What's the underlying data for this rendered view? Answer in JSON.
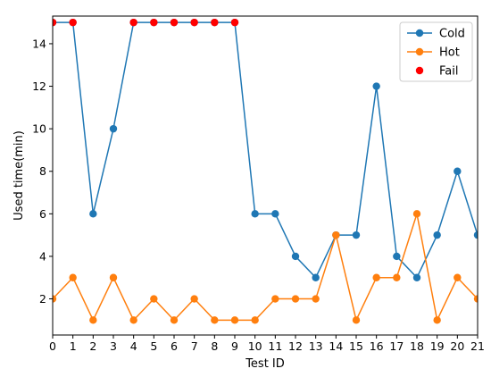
{
  "chart_data": {
    "type": "line",
    "title": "",
    "xlabel": "Test ID",
    "ylabel": "Used time(min)",
    "x": [
      0,
      1,
      2,
      3,
      4,
      5,
      6,
      7,
      8,
      9,
      10,
      11,
      12,
      13,
      14,
      15,
      16,
      17,
      18,
      19,
      20,
      21
    ],
    "xlim": [
      0,
      21
    ],
    "ylim": [
      0.3,
      15.3
    ],
    "x_ticks": [
      "0",
      "1",
      "2",
      "3",
      "4",
      "5",
      "6",
      "7",
      "8",
      "9",
      "10",
      "11",
      "12",
      "13",
      "14",
      "15",
      "16",
      "17",
      "18",
      "19",
      "20",
      "21"
    ],
    "y_ticks": [
      {
        "value": 2,
        "label": "2"
      },
      {
        "value": 4,
        "label": "4"
      },
      {
        "value": 6,
        "label": "6"
      },
      {
        "value": 8,
        "label": "8"
      },
      {
        "value": 10,
        "label": "10"
      },
      {
        "value": 12,
        "label": "12"
      },
      {
        "value": 14,
        "label": "14"
      }
    ],
    "grid": false,
    "legend_position": "top-right",
    "series": [
      {
        "name": "Cold",
        "color": "#1f77b4",
        "marker": "circle",
        "line": true,
        "values": [
          15,
          15,
          6,
          10,
          15,
          15,
          15,
          15,
          15,
          15,
          6,
          6,
          4,
          3,
          5,
          5,
          12,
          4,
          3,
          5,
          8,
          5
        ]
      },
      {
        "name": "Hot",
        "color": "#ff7f0e",
        "marker": "circle",
        "line": true,
        "values": [
          2,
          3,
          1,
          3,
          1,
          2,
          1,
          2,
          1,
          1,
          1,
          2,
          2,
          2,
          5,
          1,
          3,
          3,
          6,
          1,
          3,
          2
        ]
      },
      {
        "name": "Fail",
        "color": "#ff0000",
        "marker": "circle",
        "line": false,
        "x": [
          0,
          1,
          4,
          5,
          6,
          7,
          8,
          9
        ],
        "values": [
          15,
          15,
          15,
          15,
          15,
          15,
          15,
          15
        ]
      }
    ]
  }
}
